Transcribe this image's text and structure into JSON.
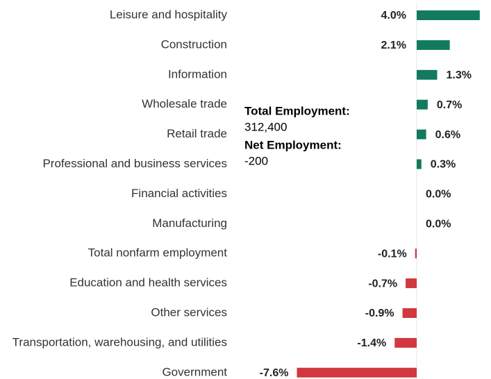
{
  "chart_data": {
    "type": "bar",
    "orientation": "horizontal",
    "categories": [
      "Leisure and hospitality",
      "Construction",
      "Information",
      "Wholesale trade",
      "Retail trade",
      "Professional and business services",
      "Financial activities",
      "Manufacturing",
      "Total nonfarm employment",
      "Education and health services",
      "Other services",
      "Transportation, warehousing, and utilities",
      "Government"
    ],
    "values": [
      4.0,
      2.1,
      1.3,
      0.7,
      0.6,
      0.3,
      0.0,
      0.0,
      -0.1,
      -0.7,
      -0.9,
      -1.4,
      -7.6
    ],
    "value_labels": [
      "4.0%",
      "2.1%",
      "1.3%",
      "0.7%",
      "0.6%",
      "0.3%",
      "0.0%",
      "0.0%",
      "-0.1%",
      "-0.7%",
      "-0.9%",
      "-1.4%",
      "-7.6%"
    ],
    "positive_color": "#127a5f",
    "negative_color": "#d2383f",
    "annotations": [
      {
        "label": "Total Employment:",
        "text": "312,400"
      },
      {
        "label": "Net Employment:",
        "text": "-200"
      }
    ]
  }
}
